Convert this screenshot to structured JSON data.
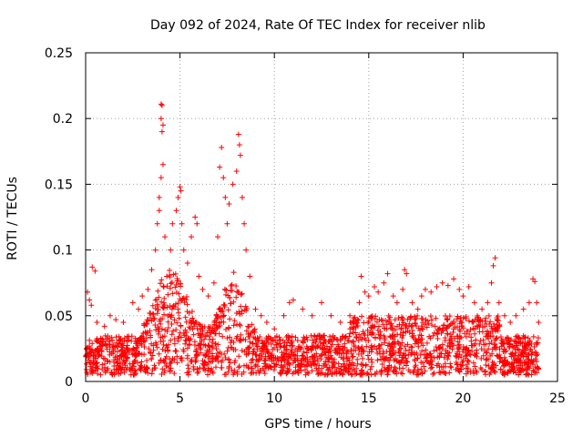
{
  "chart_data": {
    "type": "scatter",
    "title": "Day 092 of 2024, Rate Of TEC Index for receiver nlib",
    "xlabel": "GPS time / hours",
    "ylabel": "ROTI / TECUs",
    "xlim": [
      0,
      25
    ],
    "ylim": [
      0,
      0.25
    ],
    "xticks": [
      0,
      5,
      10,
      15,
      20,
      25
    ],
    "xtick_labels": [
      "0",
      "5",
      "10",
      "15",
      "20",
      "25"
    ],
    "yticks": [
      0,
      0.05,
      0.1,
      0.15,
      0.2,
      0.25
    ],
    "ytick_labels": [
      "0",
      "0.05",
      "0.1",
      "0.15",
      "0.2",
      "0.25"
    ],
    "grid": true,
    "marker": "+",
    "marker_color": "#ff0000",
    "series": [
      {
        "points": [
          [
            0.1,
            0.068
          ],
          [
            0.2,
            0.062
          ],
          [
            0.3,
            0.058
          ],
          [
            0.35,
            0.087
          ],
          [
            0.5,
            0.084
          ],
          [
            0.6,
            0.045
          ],
          [
            1.0,
            0.042
          ],
          [
            1.3,
            0.05
          ],
          [
            1.6,
            0.047
          ],
          [
            2.0,
            0.045
          ],
          [
            2.5,
            0.06
          ],
          [
            2.8,
            0.055
          ],
          [
            3.0,
            0.065
          ],
          [
            3.3,
            0.07
          ],
          [
            3.5,
            0.085
          ],
          [
            3.7,
            0.1
          ],
          [
            3.8,
            0.12
          ],
          [
            3.9,
            0.13
          ],
          [
            4.0,
            0.211
          ],
          [
            4.05,
            0.21
          ],
          [
            4.0,
            0.2
          ],
          [
            4.1,
            0.195
          ],
          [
            4.05,
            0.19
          ],
          [
            4.1,
            0.165
          ],
          [
            4.0,
            0.155
          ],
          [
            3.9,
            0.14
          ],
          [
            4.2,
            0.11
          ],
          [
            4.3,
            0.08
          ],
          [
            4.5,
            0.1
          ],
          [
            4.6,
            0.12
          ],
          [
            4.8,
            0.13
          ],
          [
            5.0,
            0.148
          ],
          [
            5.05,
            0.145
          ],
          [
            4.9,
            0.14
          ],
          [
            5.1,
            0.12
          ],
          [
            5.2,
            0.1
          ],
          [
            5.4,
            0.09
          ],
          [
            5.6,
            0.11
          ],
          [
            5.8,
            0.125
          ],
          [
            5.9,
            0.12
          ],
          [
            6.0,
            0.08
          ],
          [
            6.2,
            0.07
          ],
          [
            6.5,
            0.065
          ],
          [
            6.8,
            0.075
          ],
          [
            7.0,
            0.11
          ],
          [
            7.1,
            0.163
          ],
          [
            7.2,
            0.178
          ],
          [
            7.3,
            0.155
          ],
          [
            7.4,
            0.14
          ],
          [
            7.5,
            0.12
          ],
          [
            7.6,
            0.135
          ],
          [
            7.8,
            0.15
          ],
          [
            8.0,
            0.16
          ],
          [
            8.1,
            0.188
          ],
          [
            8.15,
            0.18
          ],
          [
            8.2,
            0.172
          ],
          [
            8.3,
            0.14
          ],
          [
            8.4,
            0.12
          ],
          [
            8.5,
            0.1
          ],
          [
            8.7,
            0.08
          ],
          [
            9.0,
            0.055
          ],
          [
            9.3,
            0.05
          ],
          [
            9.6,
            0.045
          ],
          [
            10.0,
            0.04
          ],
          [
            10.5,
            0.05
          ],
          [
            10.8,
            0.06
          ],
          [
            11.0,
            0.062
          ],
          [
            11.5,
            0.055
          ],
          [
            12.0,
            0.05
          ],
          [
            12.5,
            0.06
          ],
          [
            13.0,
            0.05
          ],
          [
            13.5,
            0.045
          ],
          [
            14.0,
            0.05
          ],
          [
            14.5,
            0.06
          ],
          [
            14.6,
            0.08
          ],
          [
            14.8,
            0.068
          ],
          [
            15.0,
            0.065
          ],
          [
            15.3,
            0.072
          ],
          [
            15.5,
            0.068
          ],
          [
            15.8,
            0.075
          ],
          [
            16.0,
            0.082
          ],
          [
            16.3,
            0.065
          ],
          [
            16.5,
            0.06
          ],
          [
            16.8,
            0.07
          ],
          [
            16.9,
            0.085
          ],
          [
            17.0,
            0.082
          ],
          [
            17.3,
            0.06
          ],
          [
            17.6,
            0.055
          ],
          [
            17.8,
            0.065
          ],
          [
            18.0,
            0.07
          ],
          [
            18.3,
            0.068
          ],
          [
            18.6,
            0.072
          ],
          [
            18.9,
            0.075
          ],
          [
            19.2,
            0.073
          ],
          [
            19.5,
            0.078
          ],
          [
            19.8,
            0.07
          ],
          [
            20.0,
            0.065
          ],
          [
            20.3,
            0.072
          ],
          [
            20.6,
            0.06
          ],
          [
            21.0,
            0.055
          ],
          [
            21.3,
            0.06
          ],
          [
            21.5,
            0.075
          ],
          [
            21.6,
            0.088
          ],
          [
            21.7,
            0.094
          ],
          [
            21.9,
            0.06
          ],
          [
            22.2,
            0.05
          ],
          [
            22.5,
            0.045
          ],
          [
            22.8,
            0.05
          ],
          [
            23.2,
            0.055
          ],
          [
            23.5,
            0.06
          ],
          [
            23.7,
            0.078
          ],
          [
            23.8,
            0.076
          ],
          [
            23.9,
            0.06
          ],
          [
            24.0,
            0.045
          ]
        ]
      }
    ]
  }
}
